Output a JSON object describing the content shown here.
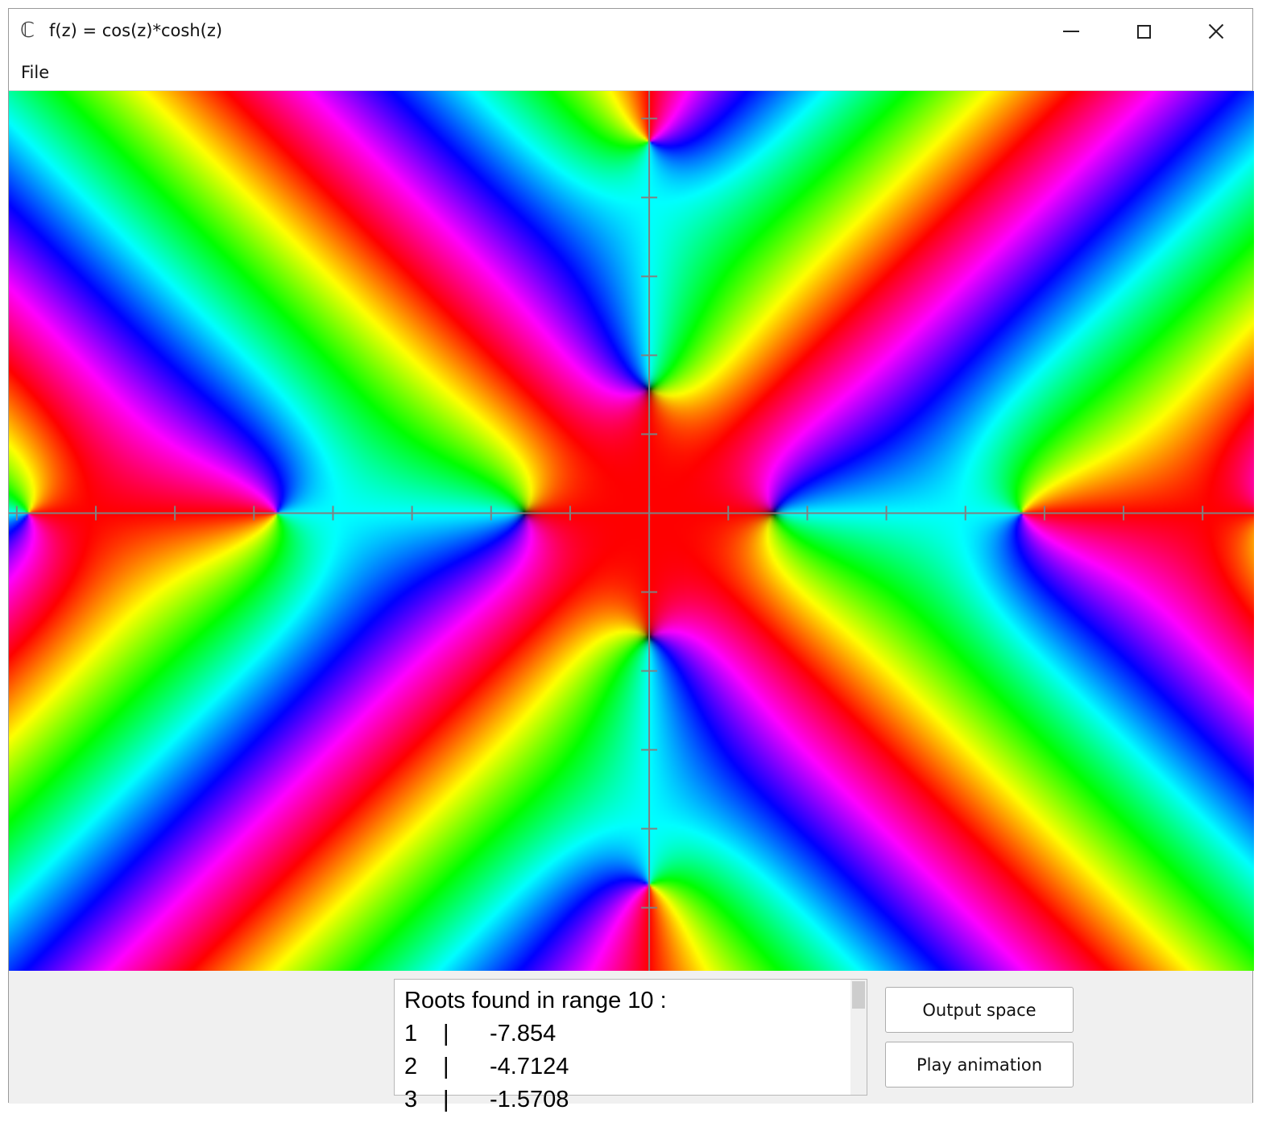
{
  "window": {
    "app_icon": "ℂ",
    "title": "f(z) = cos(z)*cosh(z)",
    "controls": [
      "minimize-icon",
      "maximize-icon",
      "close-icon"
    ]
  },
  "menu": {
    "file_label": "File"
  },
  "plot": {
    "kind": "domain-coloring",
    "function": "cos(z)*cosh(z)",
    "axis_color": "#808080",
    "view": {
      "x_range": [
        -8.1,
        7.65
      ],
      "y_range": [
        -5.8,
        5.35
      ]
    },
    "tick_spacing": 1,
    "hue_scheme": "phase-to-hue rainbow",
    "zero_shading": "dark"
  },
  "roots": {
    "header": "Roots found in range 10 :",
    "rows": [
      {
        "index": "1",
        "separator": "|",
        "value": "-7.854"
      },
      {
        "index": "2",
        "separator": "|",
        "value": "-4.7124"
      },
      {
        "index": "3",
        "separator": "|",
        "value": "-1.5708"
      }
    ]
  },
  "buttons": {
    "output_space": "Output space",
    "play_animation": "Play animation"
  }
}
